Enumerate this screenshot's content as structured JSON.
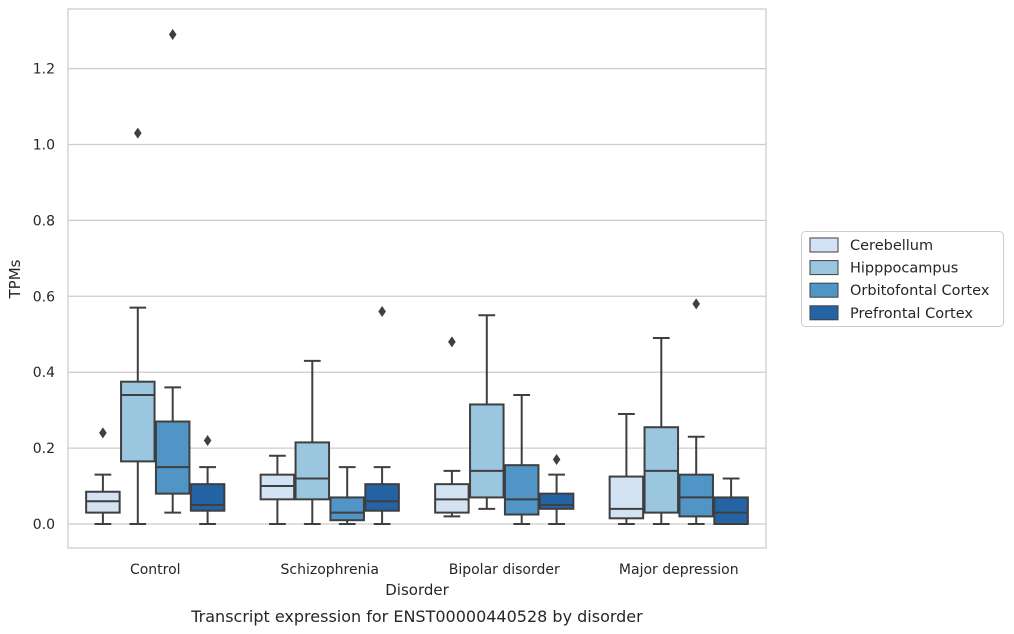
{
  "chart_data": {
    "type": "box",
    "title": "",
    "caption": "Transcript expression for ENST00000440528 by disorder",
    "xlabel": "Disorder",
    "ylabel": "TPMs",
    "ylim": [
      -0.065,
      1.35
    ],
    "yticks": [
      0.0,
      0.2,
      0.4,
      0.6,
      0.8,
      1.0,
      1.2
    ],
    "ytick_labels": [
      "0.0",
      "0.2",
      "0.4",
      "0.6",
      "0.8",
      "1.0",
      "1.2"
    ],
    "grid": "horizontal",
    "legend_position": "right, outside plot",
    "categories": [
      "Control",
      "Schizophrenia",
      "Bipolar disorder",
      "Major depression"
    ],
    "series": [
      {
        "name": "Cerebellum",
        "color": "#d4e3f3",
        "boxes": [
          {
            "whislo": 0.0,
            "q1": 0.03,
            "med": 0.06,
            "q3": 0.085,
            "whishi": 0.13,
            "fliers": [
              0.24
            ]
          },
          {
            "whislo": 0.0,
            "q1": 0.065,
            "med": 0.1,
            "q3": 0.13,
            "whishi": 0.18,
            "fliers": []
          },
          {
            "whislo": 0.02,
            "q1": 0.03,
            "med": 0.065,
            "q3": 0.105,
            "whishi": 0.14,
            "fliers": [
              0.48
            ]
          },
          {
            "whislo": 0.0,
            "q1": 0.015,
            "med": 0.04,
            "q3": 0.125,
            "whishi": 0.29,
            "fliers": []
          }
        ]
      },
      {
        "name": "Hipppocampus",
        "color": "#9ac6df",
        "boxes": [
          {
            "whislo": 0.0,
            "q1": 0.165,
            "med": 0.34,
            "q3": 0.375,
            "whishi": 0.57,
            "fliers": [
              1.03
            ]
          },
          {
            "whislo": 0.0,
            "q1": 0.065,
            "med": 0.12,
            "q3": 0.215,
            "whishi": 0.43,
            "fliers": []
          },
          {
            "whislo": 0.04,
            "q1": 0.07,
            "med": 0.14,
            "q3": 0.315,
            "whishi": 0.55,
            "fliers": []
          },
          {
            "whislo": 0.0,
            "q1": 0.03,
            "med": 0.14,
            "q3": 0.255,
            "whishi": 0.49,
            "fliers": []
          }
        ]
      },
      {
        "name": "Orbitofontal Cortex",
        "color": "#5195c6",
        "boxes": [
          {
            "whislo": 0.03,
            "q1": 0.08,
            "med": 0.15,
            "q3": 0.27,
            "whishi": 0.36,
            "fliers": [
              1.29
            ]
          },
          {
            "whislo": 0.0,
            "q1": 0.01,
            "med": 0.03,
            "q3": 0.07,
            "whishi": 0.15,
            "fliers": []
          },
          {
            "whislo": 0.0,
            "q1": 0.025,
            "med": 0.065,
            "q3": 0.155,
            "whishi": 0.34,
            "fliers": []
          },
          {
            "whislo": 0.0,
            "q1": 0.02,
            "med": 0.07,
            "q3": 0.13,
            "whishi": 0.23,
            "fliers": [
              0.58
            ]
          }
        ]
      },
      {
        "name": "Prefrontal Cortex",
        "color": "#2463a4",
        "boxes": [
          {
            "whislo": 0.0,
            "q1": 0.035,
            "med": 0.05,
            "q3": 0.105,
            "whishi": 0.15,
            "fliers": [
              0.22
            ]
          },
          {
            "whislo": 0.0,
            "q1": 0.035,
            "med": 0.06,
            "q3": 0.105,
            "whishi": 0.15,
            "fliers": [
              0.56
            ]
          },
          {
            "whislo": 0.0,
            "q1": 0.04,
            "med": 0.05,
            "q3": 0.08,
            "whishi": 0.13,
            "fliers": [
              0.17
            ]
          },
          {
            "whislo": 0.0,
            "q1": 0.0,
            "med": 0.03,
            "q3": 0.07,
            "whishi": 0.12,
            "fliers": []
          }
        ]
      }
    ]
  }
}
